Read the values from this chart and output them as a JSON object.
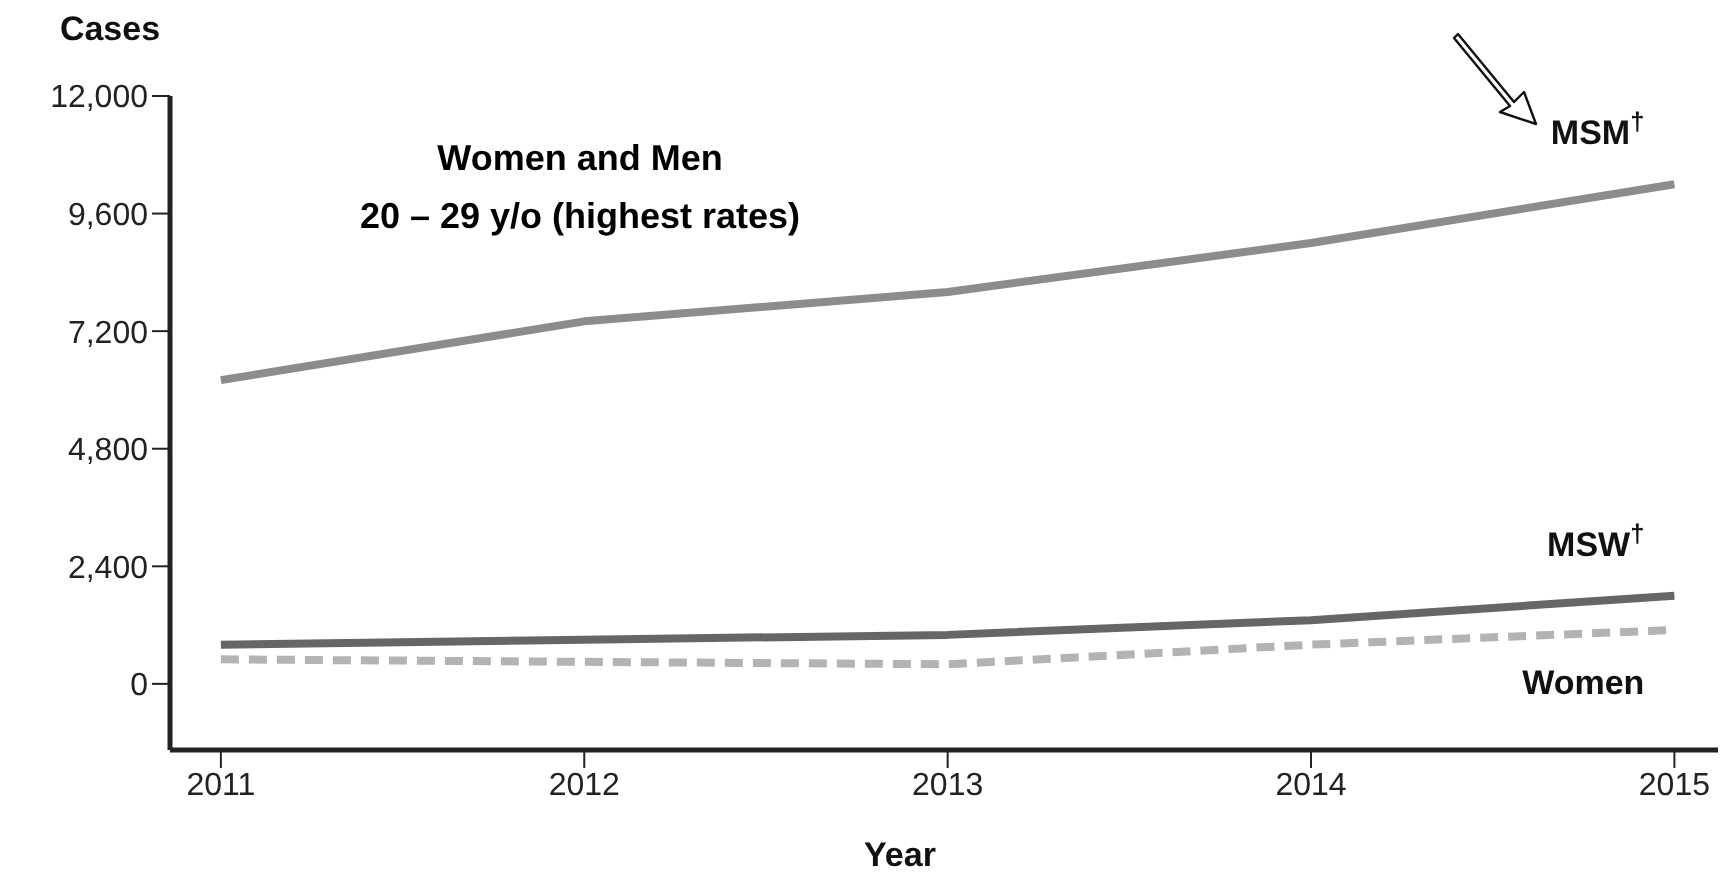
{
  "chart_data": {
    "type": "line",
    "xlabel": "Year",
    "ylabel": "Cases",
    "annotations": [
      "Women and Men",
      "20 – 29 y/o (highest rates)"
    ],
    "x": [
      2011,
      2012,
      2013,
      2014,
      2015
    ],
    "xlim": [
      2010.86,
      2015.12
    ],
    "xticks": [
      2011,
      2012,
      2013,
      2014,
      2015
    ],
    "ylim": [
      -1350,
      12000
    ],
    "yticks": [
      {
        "value": 0,
        "label": "0"
      },
      {
        "value": 2400,
        "label": "2,400"
      },
      {
        "value": 4800,
        "label": "4,800"
      },
      {
        "value": 7200,
        "label": "7,200"
      },
      {
        "value": 9600,
        "label": "9,600"
      },
      {
        "value": 12000,
        "label": "12,000"
      }
    ],
    "series": [
      {
        "name": "MSM$^{†}$",
        "color": "#8c8c8c",
        "values": [
          6200,
          7400,
          8000,
          9000,
          10200
        ]
      },
      {
        "name": "MSW$^{†}$",
        "color": "#666666",
        "values": [
          800,
          900,
          1000,
          1300,
          1800
        ]
      },
      {
        "name": "Women",
        "color": "#b3b3b3",
        "line_style": "dashed",
        "values": [
          500,
          450,
          400,
          800,
          1100
        ]
      }
    ],
    "grid": false,
    "legend": false,
    "marker": "none"
  }
}
